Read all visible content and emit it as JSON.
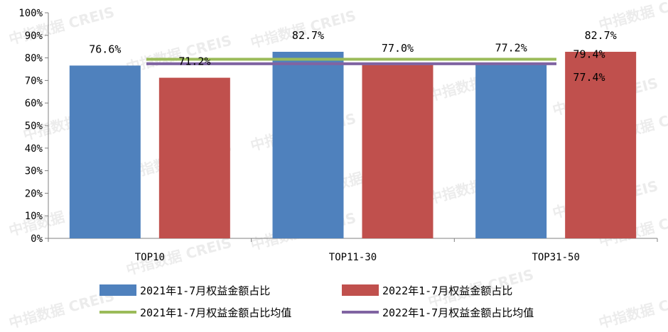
{
  "watermark": "中指数据 CREIS",
  "colors": {
    "series2021": "#4f81bd",
    "series2022": "#c0504d",
    "avg2021": "#9bbb59",
    "avg2022": "#8064a2",
    "axis": "#808080",
    "text": "#000000"
  },
  "chart_data": {
    "type": "bar",
    "categories": [
      "TOP10",
      "TOP11-30",
      "TOP31-50"
    ],
    "series": [
      {
        "name": "2021年1-7月权益金额占比",
        "values": [
          76.6,
          82.7,
          77.2
        ],
        "labels": [
          "76.6%",
          "82.7%",
          "77.2%"
        ]
      },
      {
        "name": "2022年1-7月权益金额占比",
        "values": [
          71.2,
          77.0,
          82.7
        ],
        "labels": [
          "71.2%",
          "77.0%",
          "82.7%"
        ]
      }
    ],
    "reference_lines": [
      {
        "name": "2021年1-7月权益金额占比均值",
        "value": 79.4,
        "label": "79.4%"
      },
      {
        "name": "2022年1-7月权益金额占比均值",
        "value": 77.4,
        "label": "77.4%"
      }
    ],
    "ylim": [
      0,
      100
    ],
    "yticks": [
      "0%",
      "10%",
      "20%",
      "30%",
      "40%",
      "50%",
      "60%",
      "70%",
      "80%",
      "90%",
      "100%"
    ],
    "legend_position": "bottom"
  }
}
